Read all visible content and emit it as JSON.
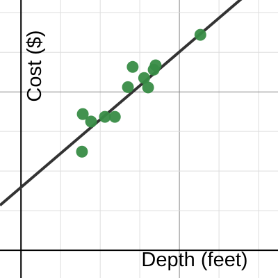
{
  "chart_data": {
    "type": "scatter",
    "x_label": "Depth (feet)",
    "y_label": "Cost ($)",
    "xlim": [
      -0.53,
      6.49
    ],
    "ylim": [
      -0.7,
      6.32
    ],
    "xgrid": [
      1,
      2,
      3,
      4,
      5,
      6
    ],
    "ygrid": [
      1,
      2,
      3,
      4,
      5,
      6
    ],
    "major_grid_step": 4,
    "color": "#388c46",
    "x": [
      4.53,
      2.82,
      3.4,
      3.35,
      3.11,
      2.7,
      3.21,
      1.56,
      1.77,
      2.12,
      2.37,
      1.54
    ],
    "values": [
      5.44,
      4.63,
      4.67,
      4.56,
      4.35,
      4.12,
      4.11,
      3.44,
      3.25,
      3.37,
      3.37,
      2.49
    ],
    "trendline": {
      "slope": 0.855,
      "intercept": 1.59,
      "color": "#333333"
    }
  }
}
